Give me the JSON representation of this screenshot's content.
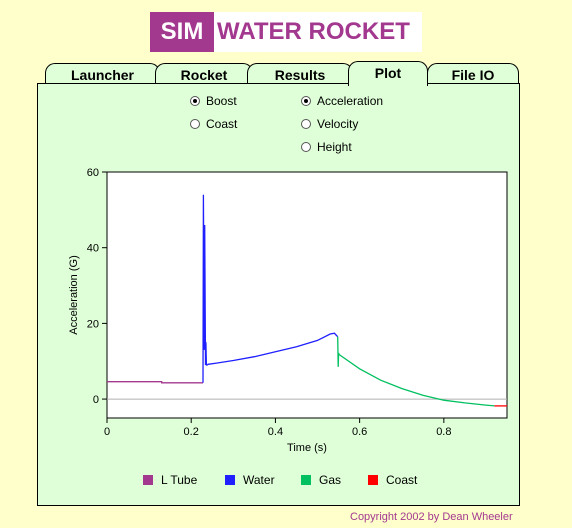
{
  "logo": {
    "sim": "SIM",
    "title": "WATER ROCKET"
  },
  "tabs": [
    {
      "label": "Launcher",
      "active": false
    },
    {
      "label": "Rocket",
      "active": false
    },
    {
      "label": "Results",
      "active": false
    },
    {
      "label": "Plot",
      "active": true
    },
    {
      "label": "File IO",
      "active": false
    }
  ],
  "phase_options": [
    {
      "label": "Boost",
      "checked": true
    },
    {
      "label": "Coast",
      "checked": false
    }
  ],
  "quantity_options": [
    {
      "label": "Acceleration",
      "checked": true
    },
    {
      "label": "Velocity",
      "checked": false
    },
    {
      "label": "Height",
      "checked": false
    }
  ],
  "legend": [
    {
      "label": "L Tube",
      "color": "#a3388f"
    },
    {
      "label": "Water",
      "color": "#1f1fff"
    },
    {
      "label": "Gas",
      "color": "#00c060"
    },
    {
      "label": "Coast",
      "color": "#ff0000"
    }
  ],
  "copyright": "Copyright 2002 by Dean Wheeler",
  "chart_data": {
    "type": "line",
    "xlabel": "Time (s)",
    "ylabel": "Acceleration (G)",
    "xlim": [
      0,
      0.95
    ],
    "ylim": [
      -5,
      60
    ],
    "xticks": [
      0,
      0.2,
      0.4,
      0.6,
      0.8
    ],
    "yticks": [
      0,
      20,
      40,
      60
    ],
    "tick_labels_x": [
      "0",
      "0.2",
      "0.4",
      "0.6",
      "0.8"
    ],
    "tick_labels_y": [
      "0",
      "20",
      "40",
      "60"
    ],
    "zero_line": true,
    "series": [
      {
        "name": "L Tube",
        "color": "#a3388f",
        "x": [
          0,
          0.13,
          0.13,
          0.228
        ],
        "y": [
          4.6,
          4.6,
          4.3,
          4.3
        ]
      },
      {
        "name": "Water",
        "color": "#1f1fff",
        "x": [
          0.228,
          0.229,
          0.231,
          0.232,
          0.234,
          0.235,
          0.236,
          0.238,
          0.24,
          0.26,
          0.3,
          0.35,
          0.4,
          0.45,
          0.5,
          0.53,
          0.54,
          0.545,
          0.548
        ],
        "y": [
          4.3,
          54,
          13,
          46,
          9,
          15,
          9,
          9,
          9.2,
          9.5,
          10.2,
          11.2,
          12.5,
          13.8,
          15.5,
          17.2,
          17.4,
          16.8,
          16.5
        ]
      },
      {
        "name": "Gas",
        "color": "#00c060",
        "x": [
          0.548,
          0.549,
          0.55,
          0.551,
          0.555,
          0.6,
          0.65,
          0.7,
          0.75,
          0.8,
          0.85,
          0.9,
          0.92
        ],
        "y": [
          16.5,
          8.5,
          12.2,
          11.8,
          11.5,
          8,
          5,
          2.8,
          1,
          -0.3,
          -1,
          -1.6,
          -1.8
        ]
      },
      {
        "name": "Coast",
        "color": "#ff0000",
        "x": [
          0.92,
          0.95
        ],
        "y": [
          -1.8,
          -1.8
        ]
      }
    ]
  }
}
